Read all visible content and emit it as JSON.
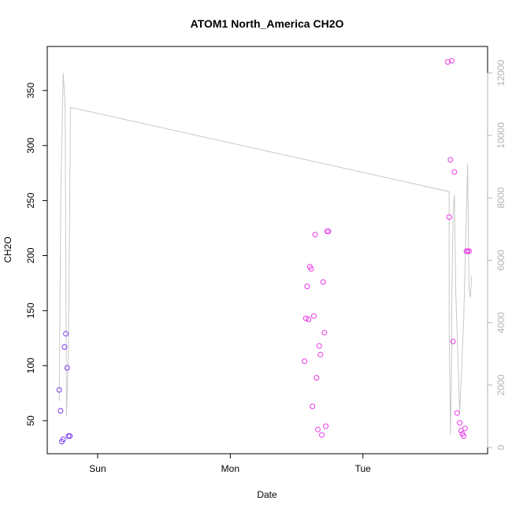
{
  "chart_data": {
    "type": "scatter",
    "title": "ATOM1 North_America CH2O",
    "xlabel": "Date",
    "ylabel": "CH2O",
    "x_unit": "days",
    "x_ticks": [
      {
        "value": 1,
        "label": "Sun"
      },
      {
        "value": 2,
        "label": "Mon"
      },
      {
        "value": 3,
        "label": "Tue"
      }
    ],
    "xlim": [
      0.62,
      3.94
    ],
    "ylim": [
      20,
      390
    ],
    "y_ticks": [
      50,
      100,
      150,
      200,
      250,
      300,
      350
    ],
    "y2lim": [
      -200,
      12850
    ],
    "y2_ticks": [
      0,
      2000,
      4000,
      6000,
      8000,
      10000,
      12000
    ],
    "grid": false,
    "colors": {
      "line": "#c8c8c8",
      "right_axis": "#b3b3b3",
      "point_early": "#7b3cf0",
      "point_late": "#e83ae6"
    },
    "series": [
      {
        "axis": "right",
        "style": "line",
        "x": [
          0.71,
          0.722,
          0.74,
          0.755,
          0.765,
          0.78,
          0.795,
          3.65,
          3.65,
          3.65,
          3.66,
          3.67,
          3.67,
          3.68,
          3.69,
          3.7,
          3.73,
          3.76,
          3.79,
          3.8,
          3.8,
          3.81,
          3.82
        ],
        "y": [
          1500,
          8000,
          12000,
          11000,
          1000,
          3000,
          10900,
          8200,
          4000,
          4000,
          400,
          3000,
          4600,
          7500,
          8100,
          5000,
          1100,
          4100,
          9100,
          5200,
          5100,
          4800,
          5500
        ]
      },
      {
        "axis": "left",
        "style": "points",
        "x": [
          0.71,
          0.72,
          0.73,
          0.74,
          0.75,
          0.76,
          0.77,
          0.78,
          0.79
        ],
        "y": [
          78,
          59,
          31,
          33,
          117,
          129,
          98,
          36,
          36
        ]
      },
      {
        "axis": "left",
        "style": "points",
        "x": [
          2.56,
          2.57,
          2.58,
          2.59,
          2.6,
          2.61,
          2.62,
          2.63,
          2.64,
          2.65,
          2.66,
          2.67,
          2.68,
          2.69,
          2.7,
          2.71,
          2.72,
          2.73,
          2.74,
          3.64,
          3.65,
          3.66,
          3.67,
          3.68,
          3.69,
          3.71,
          3.73,
          3.74,
          3.75,
          3.76,
          3.77,
          3.78,
          3.79,
          3.8
        ],
        "y": [
          104,
          143,
          172,
          142,
          190,
          188,
          63,
          145,
          219,
          89,
          42,
          118,
          110,
          37,
          176,
          130,
          45,
          222,
          222,
          376,
          235,
          287,
          377,
          122,
          276,
          57,
          48,
          41,
          38,
          36,
          43,
          204,
          204,
          204
        ]
      }
    ]
  }
}
